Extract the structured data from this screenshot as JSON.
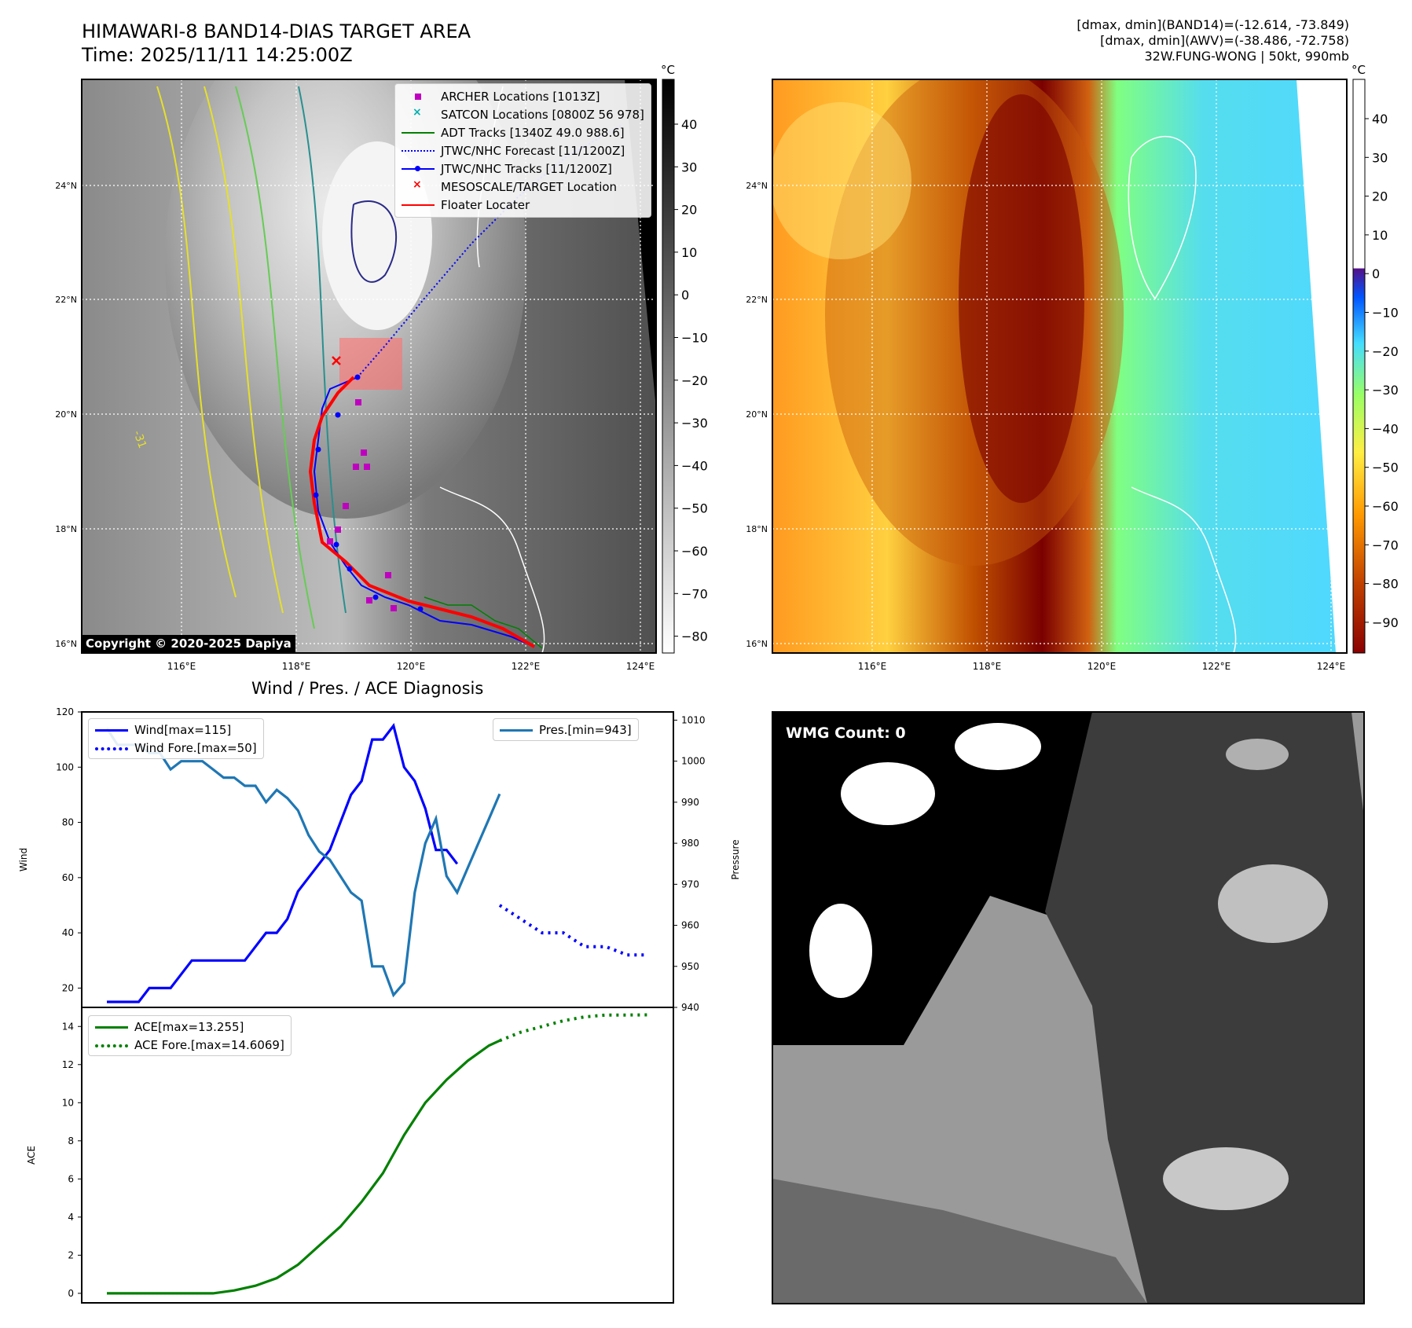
{
  "header": {
    "title": "HIMAWARI-8 BAND14-DIAS TARGET AREA",
    "time": "Time: 2025/11/11 14:25:00Z",
    "info_line1": "[dmax, dmin](BAND14)=(-12.614, -73.849)",
    "info_line2": "[dmax, dmin](AWV)=(-38.486, -72.758)",
    "info_line3": "32W.FUNG-WONG | 50kt, 990mb"
  },
  "map_axes": {
    "lat_ticks": [
      "24°N",
      "22°N",
      "20°N",
      "18°N",
      "16°N"
    ],
    "lon_ticks": [
      "116°E",
      "118°E",
      "120°E",
      "122°E",
      "124°E"
    ],
    "contour_label": "-31"
  },
  "ir_map": {
    "colorbar_unit": "°C",
    "colorbar_ticks": [
      "40",
      "30",
      "20",
      "10",
      "0",
      "−10",
      "−20",
      "−30",
      "−40",
      "−50",
      "−60",
      "−70",
      "−80"
    ],
    "copyright": "Copyright © 2020-2025 Dapiya",
    "legend": [
      {
        "label": "ARCHER Locations [1013Z]",
        "symbol": "square",
        "color": "#c000c0"
      },
      {
        "label": "SATCON Locations [0800Z 56 978]",
        "symbol": "x",
        "color": "#00b0b0"
      },
      {
        "label": "ADT Tracks [1340Z 49.0 988.6]",
        "symbol": "line",
        "color": "#008000"
      },
      {
        "label": "JTWC/NHC Forecast [11/1200Z]",
        "symbol": "dotted",
        "color": "#0000ff"
      },
      {
        "label": "JTWC/NHC Tracks [11/1200Z]",
        "symbol": "line-dot",
        "color": "#0000ff"
      },
      {
        "label": "MESOSCALE/TARGET Location",
        "symbol": "x",
        "color": "#ff0000"
      },
      {
        "label": "Floater Locater",
        "symbol": "line",
        "color": "#ff0000"
      }
    ]
  },
  "awv_map": {
    "colorbar_unit": "°C",
    "colorbar_ticks": [
      "40",
      "30",
      "20",
      "10",
      "0",
      "−10",
      "−20",
      "−30",
      "−40",
      "−50",
      "−60",
      "−70",
      "−80",
      "−90"
    ]
  },
  "diagnosis": {
    "title": "Wind / Pres. / ACE Diagnosis",
    "wind_ylabel": "Wind",
    "pres_ylabel": "Pressure",
    "ace_ylabel": "ACE"
  },
  "wmg": {
    "label": "WMG Count: 0"
  },
  "chart_data": [
    {
      "type": "line",
      "title": "",
      "ylabel": "Wind",
      "ylim": [
        13,
        120
      ],
      "yticks": [
        20,
        40,
        60,
        80,
        100,
        120
      ],
      "series": [
        {
          "name": "Wind[max=115]",
          "style": "solid",
          "color": "#0000ff",
          "x": [
            0,
            1,
            2,
            3,
            4,
            5,
            6,
            7,
            8,
            9,
            10,
            11,
            12,
            13,
            14,
            15,
            16,
            17,
            18,
            19,
            20,
            21,
            22,
            23,
            24,
            25,
            26,
            27,
            28,
            29,
            30,
            31,
            32,
            33
          ],
          "values": [
            15,
            15,
            15,
            15,
            20,
            20,
            20,
            25,
            30,
            30,
            30,
            30,
            30,
            30,
            35,
            40,
            40,
            45,
            55,
            60,
            65,
            70,
            80,
            90,
            95,
            110,
            110,
            115,
            100,
            95,
            85,
            70,
            70,
            65
          ]
        },
        {
          "name": "Wind Fore.[max=50]",
          "style": "dotted",
          "color": "#0000ff",
          "x": [
            37,
            39,
            41,
            43,
            45,
            47,
            49,
            51
          ],
          "values": [
            50,
            45,
            40,
            40,
            35,
            35,
            32,
            32
          ]
        }
      ]
    },
    {
      "type": "line",
      "title": "",
      "ylabel": "Pressure",
      "ylim": [
        940,
        1012
      ],
      "yticks": [
        940,
        950,
        960,
        970,
        980,
        990,
        1000,
        1010
      ],
      "series": [
        {
          "name": "Pres.[min=943]",
          "color": "#1f77b4",
          "x": [
            0,
            1,
            2,
            3,
            4,
            5,
            6,
            7,
            8,
            9,
            10,
            11,
            12,
            13,
            14,
            15,
            16,
            17,
            18,
            19,
            20,
            21,
            22,
            23,
            24,
            25,
            26,
            27,
            28,
            29,
            30,
            31,
            32,
            33,
            34,
            35,
            36,
            37
          ],
          "values": [
            1008,
            1004,
            1004,
            1004,
            1002,
            1002,
            998,
            1000,
            1000,
            1000,
            998,
            996,
            996,
            994,
            994,
            990,
            993,
            991,
            988,
            982,
            978,
            976,
            972,
            968,
            966,
            950,
            950,
            943,
            946,
            968,
            980,
            986,
            972,
            968,
            974,
            980,
            986,
            992
          ]
        }
      ]
    },
    {
      "type": "line",
      "title": "",
      "ylabel": "ACE",
      "ylim": [
        -0.5,
        15
      ],
      "yticks": [
        0,
        2,
        4,
        6,
        8,
        10,
        12,
        14
      ],
      "series": [
        {
          "name": "ACE[max=13.255]",
          "style": "solid",
          "color": "#008000",
          "x": [
            0,
            2,
            4,
            6,
            8,
            10,
            12,
            14,
            16,
            18,
            20,
            22,
            24,
            26,
            28,
            30,
            32,
            34,
            36,
            37
          ],
          "values": [
            0,
            0,
            0,
            0,
            0,
            0,
            0.15,
            0.4,
            0.8,
            1.5,
            2.5,
            3.5,
            4.8,
            6.3,
            8.3,
            10.0,
            11.2,
            12.2,
            13.0,
            13.255
          ]
        },
        {
          "name": "ACE Fore.[max=14.6069]",
          "style": "dotted",
          "color": "#008000",
          "x": [
            37,
            39,
            41,
            43,
            45,
            47,
            49,
            51
          ],
          "values": [
            13.255,
            13.7,
            14.0,
            14.3,
            14.5,
            14.6,
            14.6,
            14.6069
          ]
        }
      ]
    }
  ]
}
